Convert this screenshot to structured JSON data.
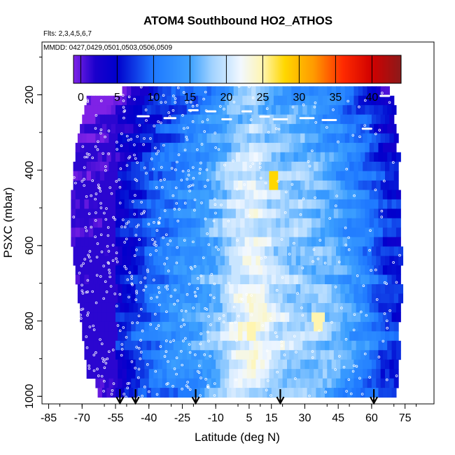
{
  "chart_data": {
    "type": "heatmap",
    "title": "ATOM4 Southbound HO2_ATHOS",
    "flights_note": "Flts: 2,3,4,5,6,7",
    "dates_note": "MMDD: 0427,0429,0501,0503,0506,0509",
    "xlabel": "Latitude (deg N)",
    "ylabel": "PSXC (mbar)",
    "xlim": [
      -88,
      88
    ],
    "ylim": [
      1020,
      60
    ],
    "x_ticks": [
      -85,
      -70,
      -55,
      -40,
      -25,
      -10,
      5,
      15,
      30,
      45,
      60,
      75
    ],
    "x_tick_labels": [
      "-85",
      "-70",
      "-55",
      "-40",
      "-25",
      "-10",
      "5",
      "15",
      "30",
      "45",
      "60",
      "75"
    ],
    "y_ticks": [
      200,
      400,
      600,
      800,
      1000
    ],
    "y_tick_labels": [
      "200",
      "400",
      "600",
      "800",
      "1000"
    ],
    "colorbar": {
      "min": -1,
      "max": 44,
      "ticks": [
        0,
        5,
        10,
        15,
        20,
        25,
        30,
        35,
        40
      ],
      "tick_labels": [
        "0",
        "5",
        "10",
        "15",
        "20",
        "25",
        "30",
        "35",
        "40"
      ],
      "colors": [
        "#7f22e6",
        "#1a00cc",
        "#0000cc",
        "#1e78ff",
        "#3ca0ff",
        "#a0d2ff",
        "#f2f8ff",
        "#fff5b0",
        "#ffd700",
        "#ff9a00",
        "#ff2a00",
        "#d00000",
        "#8b1a1a"
      ],
      "color_values": [
        -1,
        2,
        5,
        10,
        15,
        18,
        22,
        25,
        28,
        32,
        36,
        40,
        44
      ]
    },
    "profile_arrow_latitudes": [
      -53,
      -46,
      -19,
      19,
      61
    ],
    "layers": [
      {
        "p": 190,
        "lat_min": -52,
        "lat_max": 68
      },
      {
        "p": 215,
        "lat_min": -68,
        "lat_max": 70
      },
      {
        "p": 240,
        "lat_min": -69,
        "lat_max": 70
      },
      {
        "p": 265,
        "lat_min": -70,
        "lat_max": 70
      },
      {
        "p": 290,
        "lat_min": -71,
        "lat_max": 71
      },
      {
        "p": 315,
        "lat_min": -72,
        "lat_max": 71
      },
      {
        "p": 340,
        "lat_min": -73,
        "lat_max": 71
      },
      {
        "p": 365,
        "lat_min": -73,
        "lat_max": 72
      },
      {
        "p": 390,
        "lat_min": -74,
        "lat_max": 72
      },
      {
        "p": 415,
        "lat_min": -74,
        "lat_max": 72
      },
      {
        "p": 440,
        "lat_min": -74,
        "lat_max": 72
      },
      {
        "p": 465,
        "lat_min": -75,
        "lat_max": 72
      },
      {
        "p": 490,
        "lat_min": -75,
        "lat_max": 73
      },
      {
        "p": 515,
        "lat_min": -75,
        "lat_max": 73
      },
      {
        "p": 540,
        "lat_min": -75,
        "lat_max": 73
      },
      {
        "p": 565,
        "lat_min": -75,
        "lat_max": 73
      },
      {
        "p": 590,
        "lat_min": -75,
        "lat_max": 73
      },
      {
        "p": 615,
        "lat_min": -74,
        "lat_max": 73
      },
      {
        "p": 640,
        "lat_min": -74,
        "lat_max": 73
      },
      {
        "p": 665,
        "lat_min": -73,
        "lat_max": 73
      },
      {
        "p": 690,
        "lat_min": -73,
        "lat_max": 73
      },
      {
        "p": 715,
        "lat_min": -72,
        "lat_max": 73
      },
      {
        "p": 740,
        "lat_min": -72,
        "lat_max": 73
      },
      {
        "p": 765,
        "lat_min": -71,
        "lat_max": 72
      },
      {
        "p": 790,
        "lat_min": -71,
        "lat_max": 72
      },
      {
        "p": 815,
        "lat_min": -70,
        "lat_max": 72
      },
      {
        "p": 840,
        "lat_min": -70,
        "lat_max": 72
      },
      {
        "p": 865,
        "lat_min": -69,
        "lat_max": 72
      },
      {
        "p": 890,
        "lat_min": -69,
        "lat_max": 72
      },
      {
        "p": 915,
        "lat_min": -68,
        "lat_max": 72
      },
      {
        "p": 940,
        "lat_min": -68,
        "lat_max": 72
      },
      {
        "p": 965,
        "lat_min": -64,
        "lat_max": 71
      },
      {
        "p": 990,
        "lat_min": -63,
        "lat_max": 71
      }
    ],
    "lat_profile_points": [
      {
        "lat": -85,
        "ho2": 0
      },
      {
        "lat": -70,
        "ho2": 1
      },
      {
        "lat": -60,
        "ho2": 2
      },
      {
        "lat": -52,
        "ho2": 4
      },
      {
        "lat": -45,
        "ho2": 6
      },
      {
        "lat": -38,
        "ho2": 8
      },
      {
        "lat": -30,
        "ho2": 10
      },
      {
        "lat": -22,
        "ho2": 12
      },
      {
        "lat": -15,
        "ho2": 14
      },
      {
        "lat": -8,
        "ho2": 16
      },
      {
        "lat": 0,
        "ho2": 19
      },
      {
        "lat": 8,
        "ho2": 20
      },
      {
        "lat": 16,
        "ho2": 18
      },
      {
        "lat": 24,
        "ho2": 17
      },
      {
        "lat": 32,
        "ho2": 16
      },
      {
        "lat": 42,
        "ho2": 14
      },
      {
        "lat": 50,
        "ho2": 12
      },
      {
        "lat": 58,
        "ho2": 10
      },
      {
        "lat": 66,
        "ho2": 6
      },
      {
        "lat": 75,
        "ho2": 4
      }
    ],
    "pressure_profile_points": [
      {
        "p": 190,
        "ho2": -3
      },
      {
        "p": 300,
        "ho2": -1
      },
      {
        "p": 450,
        "ho2": 1
      },
      {
        "p": 600,
        "ho2": 1
      },
      {
        "p": 750,
        "ho2": 2
      },
      {
        "p": 850,
        "ho2": 3
      },
      {
        "p": 950,
        "ho2": 1
      },
      {
        "p": 1000,
        "ho2": 0
      }
    ],
    "notable_values": [
      {
        "lat": 16,
        "p_min": 415,
        "p_max": 455,
        "ho2": 28
      },
      {
        "lat": 6,
        "p_min": 805,
        "p_max": 850,
        "ho2": 25
      },
      {
        "lat": 36,
        "p_min": 790,
        "p_max": 820,
        "ho2": 25
      },
      {
        "lat": 2,
        "p_min": 875,
        "p_max": 905,
        "ho2": 23
      },
      {
        "lat": -1,
        "p_min": 630,
        "p_max": 690,
        "ho2": 20
      }
    ]
  }
}
